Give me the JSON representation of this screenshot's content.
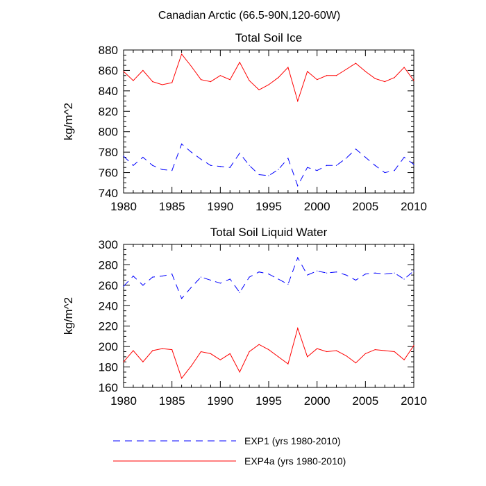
{
  "figure_title": "Canadian Arctic (66.5-90N,120-60W)",
  "legend": [
    {
      "label": "EXP1 (yrs 1980-2010)",
      "color": "#0000ff",
      "dash": "dashed"
    },
    {
      "label": "EXP4a (yrs 1980-2010)",
      "color": "#ff0000",
      "dash": "solid"
    }
  ],
  "chart_data": [
    {
      "type": "line",
      "title": "Total Soil Ice",
      "xlabel": "",
      "ylabel": "kg/m^2",
      "xlim": [
        1980,
        2010
      ],
      "ylim": [
        740,
        880
      ],
      "x_ticks": [
        1980,
        1985,
        1990,
        1995,
        2000,
        2005,
        2010
      ],
      "y_ticks": [
        740,
        760,
        780,
        800,
        820,
        840,
        860,
        880
      ],
      "x": [
        1980,
        1981,
        1982,
        1983,
        1984,
        1985,
        1986,
        1987,
        1988,
        1989,
        1990,
        1991,
        1992,
        1993,
        1994,
        1995,
        1996,
        1997,
        1998,
        1999,
        2000,
        2001,
        2002,
        2003,
        2004,
        2005,
        2006,
        2007,
        2008,
        2009,
        2010
      ],
      "series": [
        {
          "name": "EXP1 (yrs 1980-2010)",
          "color": "#0000ff",
          "dash": "dashed",
          "values": [
            776,
            767,
            775,
            767,
            763,
            762,
            788,
            780,
            773,
            767,
            766,
            765,
            779,
            767,
            758,
            757,
            763,
            774,
            747,
            765,
            762,
            767,
            767,
            774,
            783,
            775,
            767,
            760,
            762,
            775,
            768
          ]
        },
        {
          "name": "EXP4a (yrs 1980-2010)",
          "color": "#ff0000",
          "dash": "solid",
          "values": [
            859,
            850,
            860,
            849,
            846,
            848,
            876,
            864,
            851,
            849,
            855,
            851,
            868,
            850,
            841,
            846,
            853,
            863,
            830,
            859,
            851,
            855,
            855,
            861,
            867,
            859,
            852,
            849,
            853,
            863,
            850
          ]
        }
      ]
    },
    {
      "type": "line",
      "title": "Total Soil Liquid Water",
      "xlabel": "",
      "ylabel": "kg/m^2",
      "xlim": [
        1980,
        2010
      ],
      "ylim": [
        160,
        300
      ],
      "x_ticks": [
        1980,
        1985,
        1990,
        1995,
        2000,
        2005,
        2010
      ],
      "y_ticks": [
        160,
        180,
        200,
        220,
        240,
        260,
        280,
        300
      ],
      "x": [
        1980,
        1981,
        1982,
        1983,
        1984,
        1985,
        1986,
        1987,
        1988,
        1989,
        1990,
        1991,
        1992,
        1993,
        1994,
        1995,
        1996,
        1997,
        1998,
        1999,
        2000,
        2001,
        2002,
        2003,
        2004,
        2005,
        2006,
        2007,
        2008,
        2009,
        2010
      ],
      "series": [
        {
          "name": "EXP1 (yrs 1980-2010)",
          "color": "#0000ff",
          "dash": "dashed",
          "values": [
            259,
            269,
            260,
            268,
            269,
            271,
            247,
            258,
            268,
            265,
            262,
            266,
            253,
            268,
            273,
            271,
            266,
            261,
            287,
            270,
            274,
            272,
            273,
            270,
            265,
            271,
            272,
            271,
            272,
            266,
            274
          ]
        },
        {
          "name": "EXP4a (yrs 1980-2010)",
          "color": "#ff0000",
          "dash": "solid",
          "values": [
            185,
            196,
            185,
            196,
            198,
            197,
            169,
            181,
            195,
            193,
            187,
            193,
            175,
            195,
            202,
            197,
            190,
            183,
            218,
            190,
            198,
            195,
            196,
            191,
            184,
            193,
            197,
            196,
            195,
            187,
            201
          ]
        }
      ]
    }
  ]
}
